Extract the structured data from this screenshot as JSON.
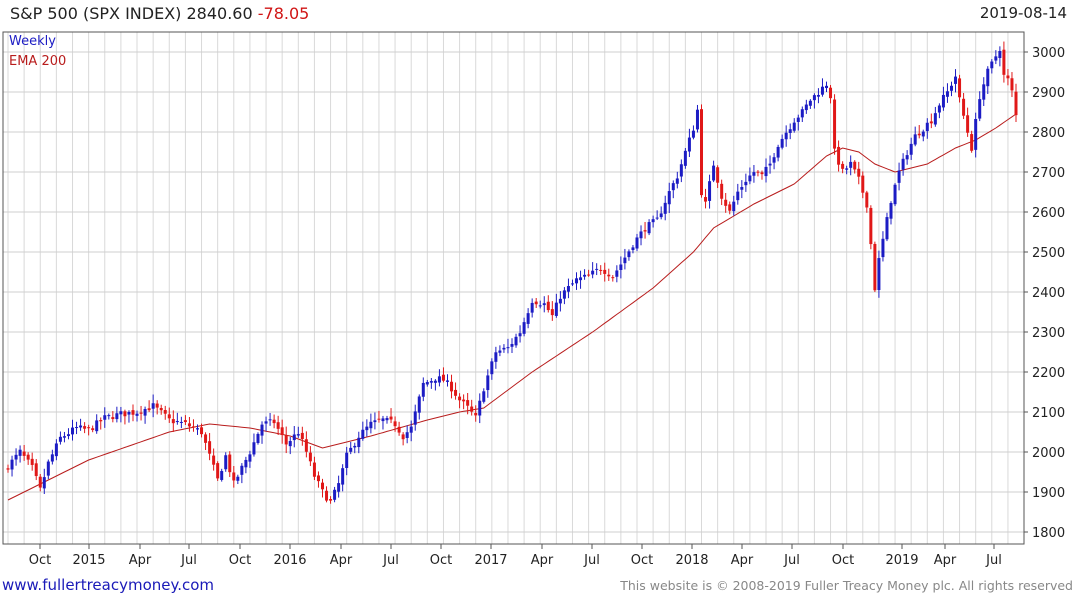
{
  "header": {
    "instrument": "S&P 500 (SPX INDEX)",
    "last": "2840.60",
    "change": "-78.05",
    "date": "2019-08-14"
  },
  "legend": {
    "series_label": "Weekly",
    "ema_label": "EMA 200"
  },
  "footer": {
    "site_link": "www.fullertreacymoney.com",
    "copyright": "This website is © 2008-2019 Fuller Treacy Money plc. All rights reserved"
  },
  "colors": {
    "up": "#1c1cc4",
    "down": "#e01818",
    "ema": "#b81c1c",
    "grid": "#d9d9d9"
  },
  "chart_data": {
    "type": "candlestick",
    "title": "S&P 500 (SPX INDEX) 2840.60 -78.05",
    "series": [
      {
        "name": "Weekly",
        "kind": "weekly OHLC candles (approx.)"
      },
      {
        "name": "EMA 200",
        "kind": "line"
      }
    ],
    "ylim": [
      1770,
      3050
    ],
    "yticks": [
      1800,
      1900,
      2000,
      2100,
      2200,
      2300,
      2400,
      2500,
      2600,
      2700,
      2800,
      2900,
      3000
    ],
    "x_tick_labels": [
      "Oct",
      "2015",
      "Apr",
      "Jul",
      "Oct",
      "2016",
      "Apr",
      "Jul",
      "Oct",
      "2017",
      "Apr",
      "Jul",
      "Oct",
      "2018",
      "Apr",
      "Jul",
      "Oct",
      "2019",
      "Apr",
      "Jul"
    ],
    "close_anchors": [
      [
        0,
        1965
      ],
      [
        3,
        2000
      ],
      [
        6,
        1960
      ],
      [
        8,
        1905
      ],
      [
        10,
        1972
      ],
      [
        13,
        2035
      ],
      [
        17,
        2060
      ],
      [
        20,
        2055
      ],
      [
        24,
        2085
      ],
      [
        28,
        2095
      ],
      [
        32,
        2100
      ],
      [
        36,
        2115
      ],
      [
        40,
        2080
      ],
      [
        44,
        2070
      ],
      [
        48,
        2050
      ],
      [
        52,
        1930
      ],
      [
        54,
        1990
      ],
      [
        56,
        1920
      ],
      [
        60,
        2000
      ],
      [
        63,
        2070
      ],
      [
        66,
        2075
      ],
      [
        69,
        2020
      ],
      [
        72,
        2050
      ],
      [
        74,
        2000
      ],
      [
        76,
        1940
      ],
      [
        78,
        1900
      ],
      [
        80,
        1875
      ],
      [
        82,
        1920
      ],
      [
        84,
        1990
      ],
      [
        87,
        2040
      ],
      [
        90,
        2070
      ],
      [
        93,
        2080
      ],
      [
        96,
        2070
      ],
      [
        98,
        2040
      ],
      [
        100,
        2060
      ],
      [
        103,
        2170
      ],
      [
        106,
        2185
      ],
      [
        108,
        2180
      ],
      [
        110,
        2160
      ],
      [
        112,
        2130
      ],
      [
        114,
        2110
      ],
      [
        116,
        2085
      ],
      [
        118,
        2160
      ],
      [
        121,
        2250
      ],
      [
        124,
        2260
      ],
      [
        127,
        2300
      ],
      [
        130,
        2380
      ],
      [
        133,
        2370
      ],
      [
        135,
        2340
      ],
      [
        137,
        2390
      ],
      [
        139,
        2410
      ],
      [
        141,
        2430
      ],
      [
        144,
        2440
      ],
      [
        147,
        2460
      ],
      [
        150,
        2440
      ],
      [
        152,
        2470
      ],
      [
        155,
        2520
      ],
      [
        158,
        2560
      ],
      [
        161,
        2580
      ],
      [
        164,
        2650
      ],
      [
        166,
        2690
      ],
      [
        168,
        2750
      ],
      [
        170,
        2810
      ],
      [
        171,
        2855
      ],
      [
        172,
        2650
      ],
      [
        173,
        2620
      ],
      [
        175,
        2720
      ],
      [
        177,
        2640
      ],
      [
        179,
        2600
      ],
      [
        181,
        2650
      ],
      [
        183,
        2680
      ],
      [
        185,
        2700
      ],
      [
        187,
        2690
      ],
      [
        189,
        2720
      ],
      [
        191,
        2770
      ],
      [
        193,
        2800
      ],
      [
        195,
        2830
      ],
      [
        197,
        2850
      ],
      [
        199,
        2880
      ],
      [
        201,
        2900
      ],
      [
        203,
        2920
      ],
      [
        204,
        2890
      ],
      [
        205,
        2750
      ],
      [
        207,
        2700
      ],
      [
        209,
        2720
      ],
      [
        211,
        2680
      ],
      [
        213,
        2620
      ],
      [
        214,
        2520
      ],
      [
        215,
        2410
      ],
      [
        216,
        2480
      ],
      [
        217,
        2530
      ],
      [
        219,
        2630
      ],
      [
        221,
        2700
      ],
      [
        223,
        2750
      ],
      [
        225,
        2790
      ],
      [
        227,
        2810
      ],
      [
        229,
        2830
      ],
      [
        231,
        2870
      ],
      [
        233,
        2900
      ],
      [
        235,
        2940
      ],
      [
        236,
        2880
      ],
      [
        238,
        2800
      ],
      [
        239,
        2760
      ],
      [
        241,
        2890
      ],
      [
        243,
        2950
      ],
      [
        245,
        2990
      ],
      [
        246,
        3010
      ],
      [
        247,
        2940
      ],
      [
        248,
        2930
      ],
      [
        249,
        2900
      ],
      [
        250,
        2840.6
      ]
    ],
    "ema_anchors": [
      [
        0,
        1880
      ],
      [
        20,
        1980
      ],
      [
        40,
        2050
      ],
      [
        50,
        2070
      ],
      [
        60,
        2060
      ],
      [
        70,
        2040
      ],
      [
        78,
        2010
      ],
      [
        90,
        2040
      ],
      [
        104,
        2080
      ],
      [
        112,
        2100
      ],
      [
        118,
        2110
      ],
      [
        130,
        2200
      ],
      [
        145,
        2300
      ],
      [
        160,
        2410
      ],
      [
        170,
        2500
      ],
      [
        175,
        2560
      ],
      [
        185,
        2620
      ],
      [
        195,
        2670
      ],
      [
        203,
        2740
      ],
      [
        207,
        2760
      ],
      [
        211,
        2750
      ],
      [
        215,
        2720
      ],
      [
        220,
        2700
      ],
      [
        228,
        2720
      ],
      [
        235,
        2760
      ],
      [
        240,
        2780
      ],
      [
        245,
        2810
      ],
      [
        250,
        2845
      ]
    ]
  }
}
